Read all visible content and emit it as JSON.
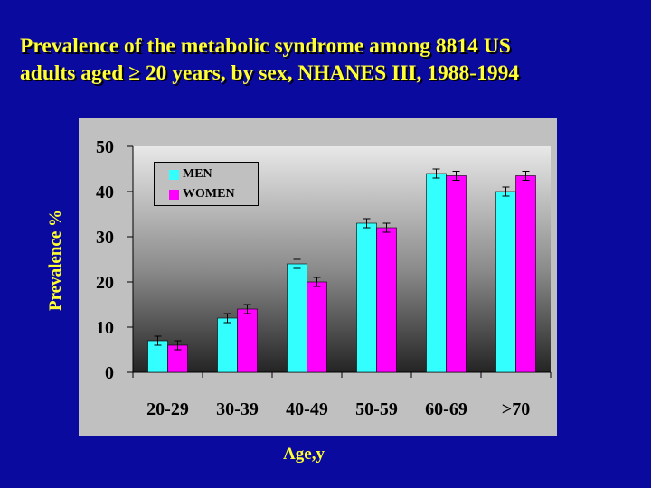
{
  "slide": {
    "title_line1": "Prevalence of the metabolic syndrome among 8814 US",
    "title_line2": "adults aged ≥ 20 years, by  sex, NHANES III, 1988-1994"
  },
  "colors": {
    "background": "#0a0a9e",
    "title": "#ffff33",
    "men": "#33ffff",
    "women": "#ff00ff",
    "panel": "#c0c0c0"
  },
  "chart_data": {
    "type": "bar",
    "categories": [
      "20-29",
      "30-39",
      "40-49",
      "50-59",
      "60-69",
      ">70"
    ],
    "series": [
      {
        "name": "MEN",
        "values": [
          7,
          12,
          24,
          33,
          44,
          40
        ],
        "errors": [
          1,
          1,
          1,
          1,
          1,
          1
        ]
      },
      {
        "name": "WOMEN",
        "values": [
          6,
          14,
          20,
          32,
          43.5,
          43.5
        ],
        "errors": [
          1,
          1,
          1,
          1,
          1,
          1
        ]
      }
    ],
    "xlabel": "Age,y",
    "ylabel": "Prevalence %",
    "ylim": [
      0,
      50
    ],
    "yticks": [
      0,
      10,
      20,
      30,
      40,
      50
    ],
    "grid": false,
    "legend_position": "top-left"
  }
}
